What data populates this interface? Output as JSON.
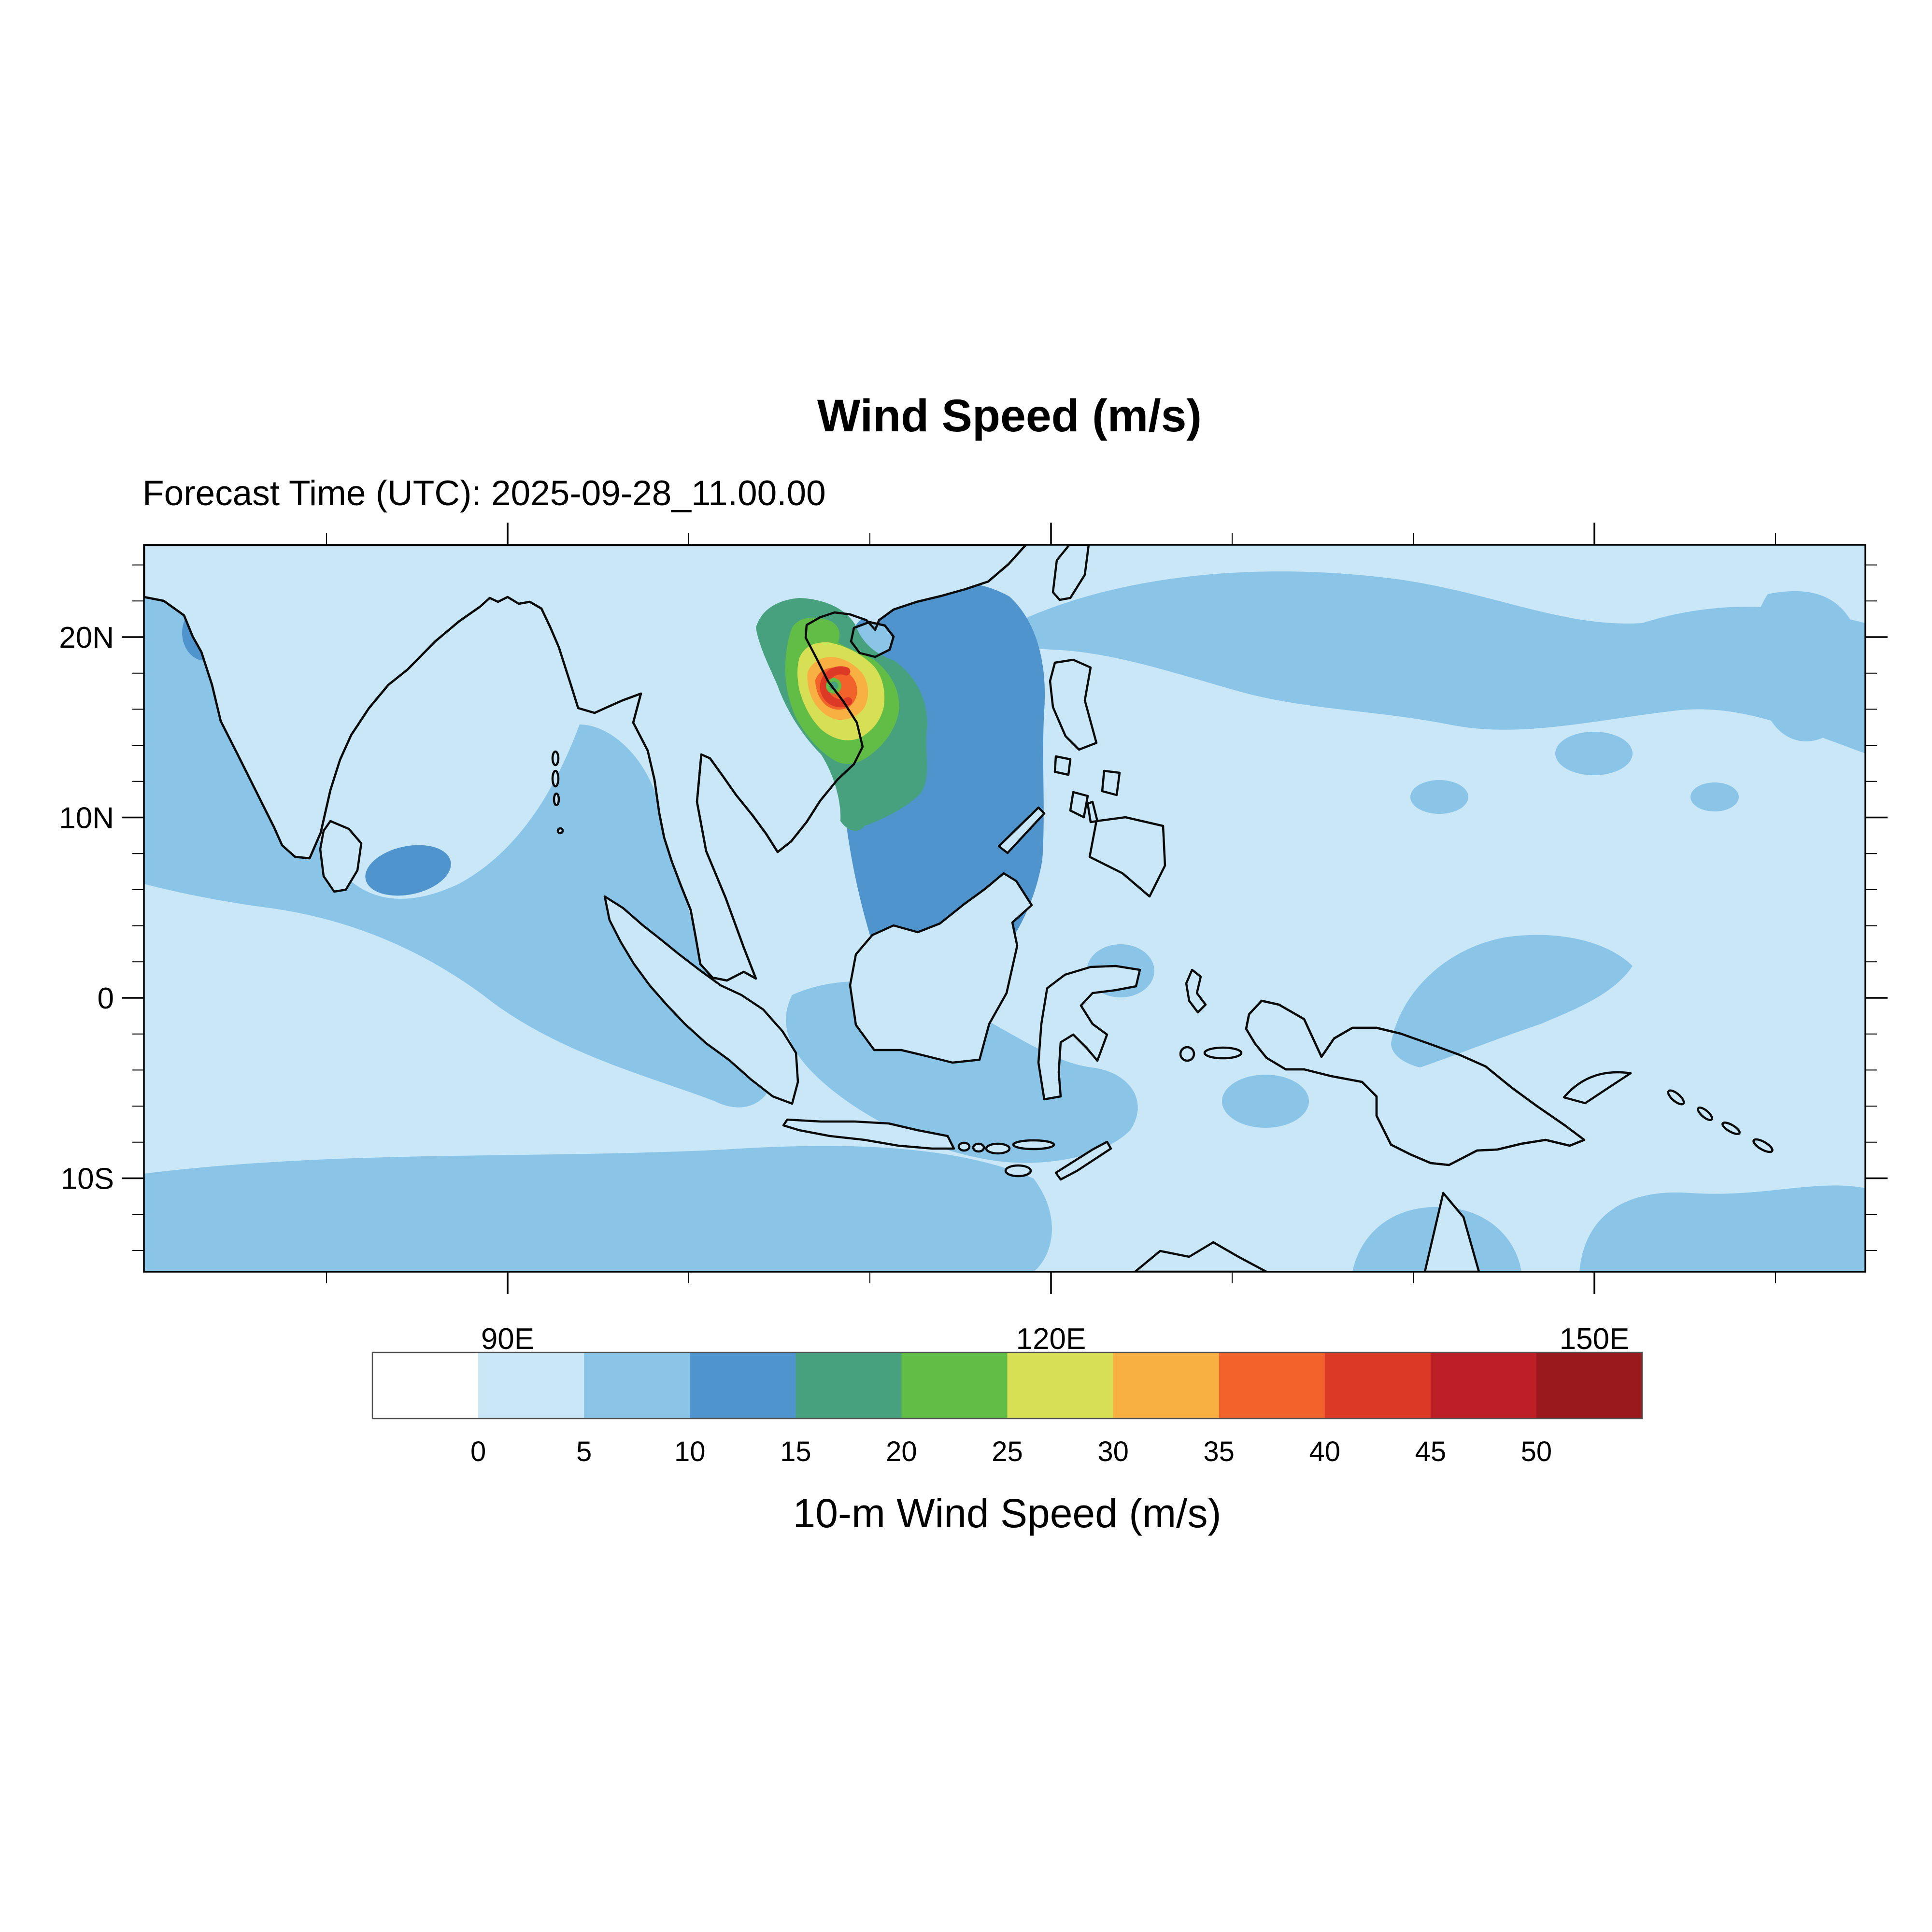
{
  "figure": {
    "title": "Wind Speed (m/s)",
    "forecast_line": "Forecast Time (UTC): 2025-09-28_11.00.00",
    "colorbar_caption": "10-m Wind Speed (m/s)"
  },
  "axes": {
    "lat_labels": [
      {
        "deg": 20,
        "label": "20N"
      },
      {
        "deg": 10,
        "label": "10N"
      },
      {
        "deg": 0,
        "label": "0"
      },
      {
        "deg": -10,
        "label": "10S"
      }
    ],
    "lon_labels": [
      {
        "deg": 90,
        "label": "90E"
      },
      {
        "deg": 120,
        "label": "120E"
      },
      {
        "deg": 150,
        "label": "150E"
      }
    ]
  },
  "colorbar": {
    "tick_labels": [
      "0",
      "5",
      "10",
      "15",
      "20",
      "25",
      "30",
      "35",
      "40",
      "45",
      "50"
    ],
    "colors": [
      "#ffffff",
      "#c9e7f7",
      "#8ac4e7",
      "#4f94cd",
      "#47a07e",
      "#62bd47",
      "#d7df55",
      "#f8b043",
      "#f2622b",
      "#dc3927",
      "#be1e26",
      "#99191d"
    ]
  },
  "palette": {
    "w0": "#ffffff",
    "b1": "#c9e7f7",
    "b2": "#8ac4e7",
    "b3": "#4f94cd",
    "g1": "#47a07e",
    "g2": "#62bd47",
    "y1": "#d7df55",
    "o1": "#f8b043",
    "o2": "#f2622b",
    "r1": "#dc3927",
    "r2": "#be1e26",
    "r3": "#99191d",
    "coast": "#0a0a0a"
  },
  "chart_data": {
    "type": "heatmap",
    "title": "Wind Speed (m/s)",
    "forecast_time_utc": "2025-09-28_11.00.00",
    "variable": "10-m Wind Speed",
    "units": "m/s",
    "lon_range_deg_east": [
      70,
      165
    ],
    "lat_range_deg_north": [
      -15,
      25
    ],
    "lon_major_ticks": [
      90,
      120,
      150
    ],
    "lon_minor_tick_step_deg": 10,
    "lat_major_ticks": [
      20,
      10,
      0,
      -10
    ],
    "lat_minor_tick_step_deg": 2,
    "contour_levels_m_s": [
      0,
      5,
      10,
      15,
      20,
      25,
      30,
      35,
      40,
      45,
      50
    ],
    "legend_position": "bottom",
    "grid": false,
    "field_summary": [
      {
        "region": "most of domain (Pacific, equatorial seas, land)",
        "band_m_s": "0-5"
      },
      {
        "region": "Arabian Sea, Bay of Bengal, southern Indian Ocean, subtropical Pacific band, Java Sea, north New Guinea",
        "band_m_s": "5-10"
      },
      {
        "region": "central/northern South China Sea around typhoon; patch SE of Sri Lanka; patch NW India",
        "band_m_s": "10-15"
      },
      {
        "region": "Gulf of Tonkin and around storm core; small patch near 109E 12N",
        "band_m_s": "15-25"
      },
      {
        "region": "storm inner bands",
        "band_m_s": "25-35"
      },
      {
        "region": "storm eyewall crescent west of eye",
        "band_m_s": "35-45"
      }
    ],
    "features": [
      {
        "name": "tropical-cyclone",
        "center_lon_e": 107.9,
        "center_lat_n": 17.4,
        "max_shaded_band_m_s": "40-45",
        "eye_band_m_s": "15-25"
      }
    ]
  }
}
